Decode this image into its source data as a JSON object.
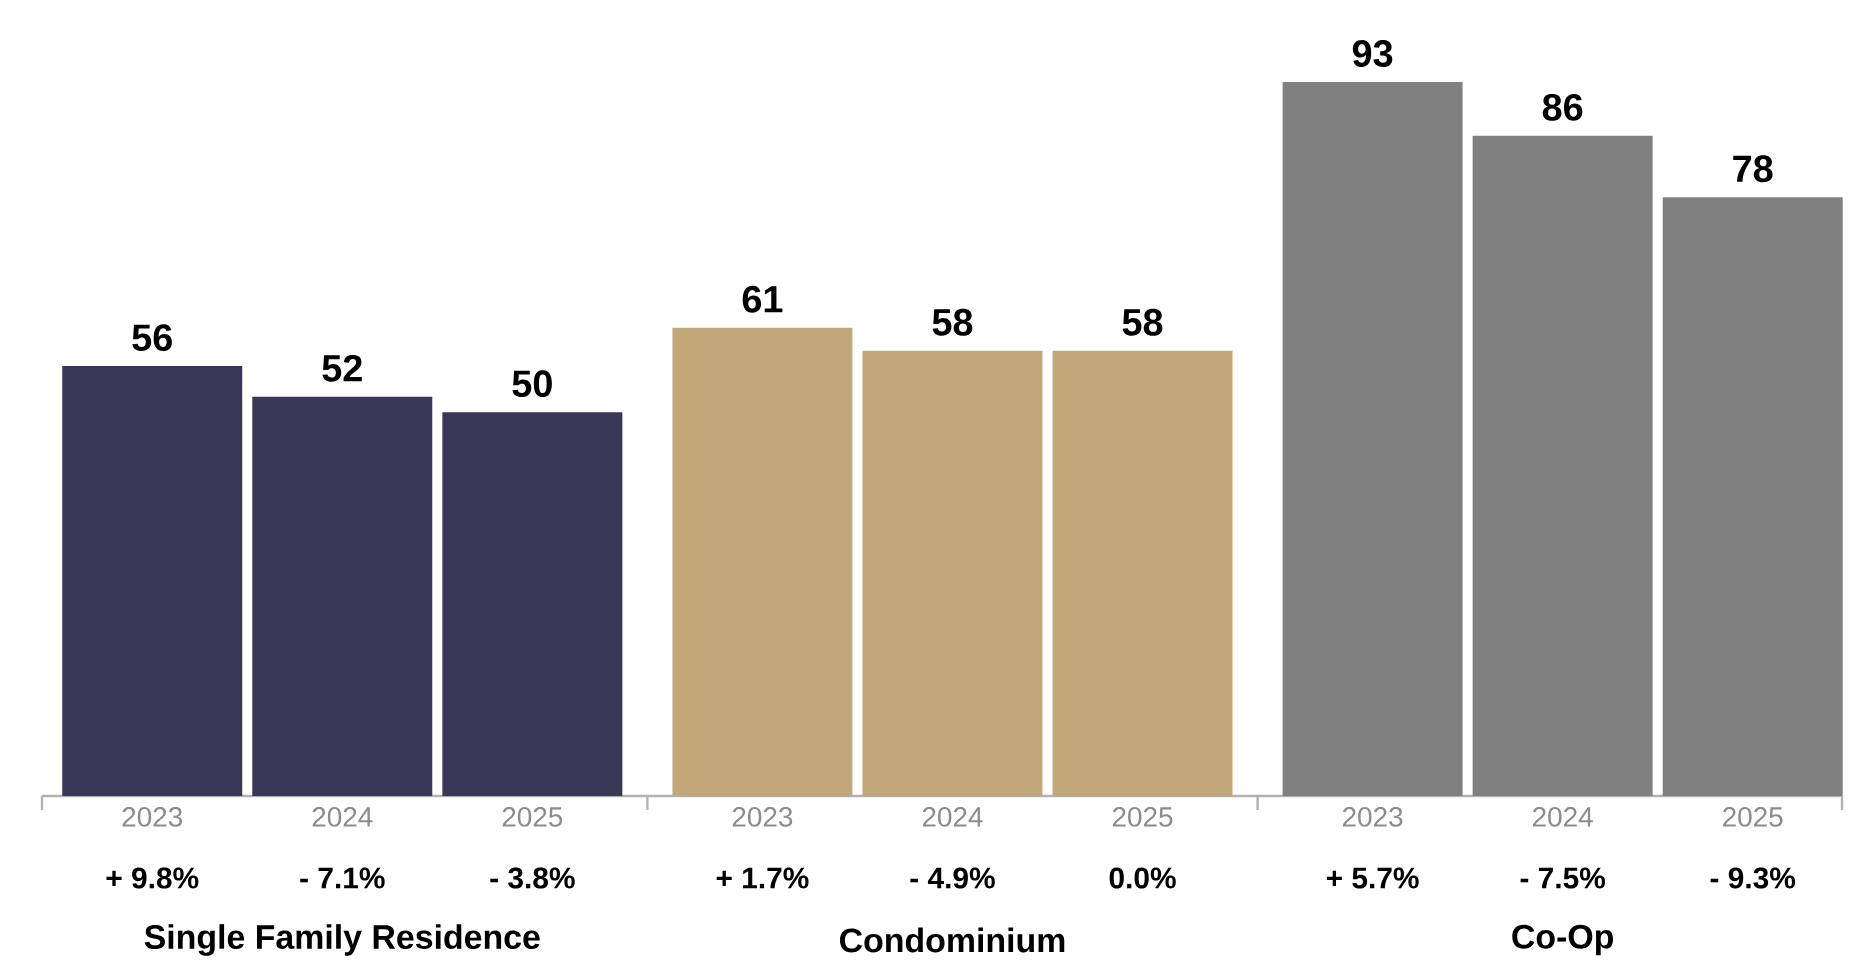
{
  "chart_data": {
    "type": "bar",
    "categories": [
      "2023",
      "2024",
      "2025",
      "2023",
      "2024",
      "2025",
      "2023",
      "2024",
      "2025"
    ],
    "values": [
      56,
      52,
      50,
      61,
      58,
      58,
      93,
      86,
      78
    ],
    "colors": [
      "#3a3756",
      "#3a3756",
      "#3a3756",
      "#c2a878",
      "#c2a878",
      "#c2a878",
      "#808080",
      "#808080",
      "#808080"
    ],
    "data_labels": true,
    "annotations": [
      "+ 9.8%",
      "- 7.1%",
      "- 3.8%",
      "+ 1.7%",
      "- 4.9%",
      "0.0%",
      "+ 5.7%",
      "- 7.5%",
      "- 9.3%",
      "Single Family Residence",
      "Condominium",
      "Co-Op"
    ]
  }
}
